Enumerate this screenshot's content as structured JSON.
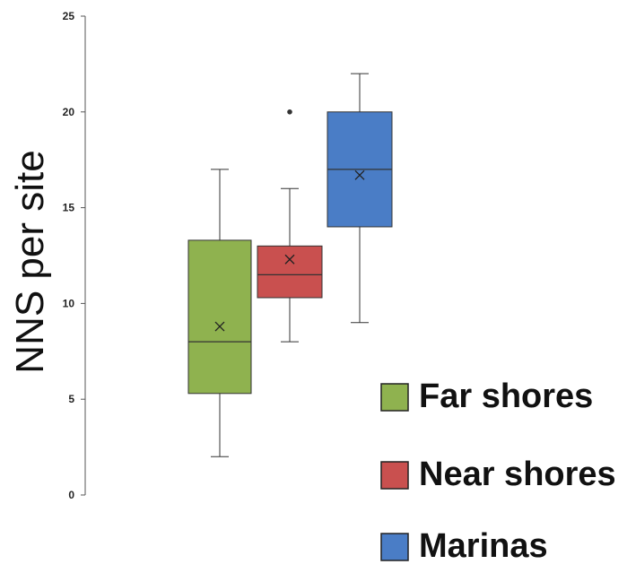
{
  "chart_data": {
    "type": "boxplot",
    "ylabel": "NNS per site",
    "ylim": [
      0,
      25
    ],
    "yticks": [
      0,
      5,
      10,
      15,
      20,
      25
    ],
    "grid": false,
    "legend_position": "bottom-right",
    "series": [
      {
        "name": "Far shores",
        "color": "#8fb24f",
        "whisker_low": 2,
        "q1": 5.3,
        "median": 8,
        "q3": 13.3,
        "whisker_high": 17,
        "mean": 8.8,
        "outliers": []
      },
      {
        "name": "Near shores",
        "color": "#c9504f",
        "whisker_low": 8,
        "q1": 10.3,
        "median": 11.5,
        "q3": 13,
        "whisker_high": 16,
        "mean": 12.3,
        "outliers": [
          20
        ]
      },
      {
        "name": "Marinas",
        "color": "#4a7dc6",
        "whisker_low": 9,
        "q1": 14,
        "median": 17,
        "q3": 20,
        "whisker_high": 22,
        "mean": 16.7,
        "outliers": []
      }
    ]
  }
}
